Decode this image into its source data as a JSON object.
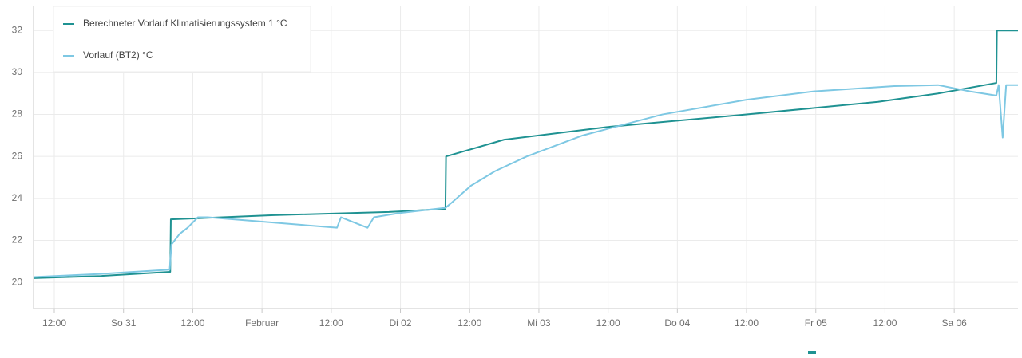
{
  "chart_data": {
    "type": "line",
    "xlim": [
      8.4,
      179.05
    ],
    "ylim": [
      18.75,
      33.15
    ],
    "xticks": [
      {
        "value": 12,
        "label": "12:00"
      },
      {
        "value": 24,
        "label": "So 31"
      },
      {
        "value": 36,
        "label": "12:00"
      },
      {
        "value": 48,
        "label": "Februar"
      },
      {
        "value": 60,
        "label": "12:00"
      },
      {
        "value": 72,
        "label": "Di 02"
      },
      {
        "value": 84,
        "label": "12:00"
      },
      {
        "value": 96,
        "label": "Mi 03"
      },
      {
        "value": 108,
        "label": "12:00"
      },
      {
        "value": 120,
        "label": "Do 04"
      },
      {
        "value": 132,
        "label": "12:00"
      },
      {
        "value": 144,
        "label": "Fr 05"
      },
      {
        "value": 156,
        "label": "12:00"
      },
      {
        "value": 168,
        "label": "Sa 06"
      }
    ],
    "yticks": [
      20,
      22,
      24,
      26,
      28,
      30,
      32
    ],
    "grid": true,
    "legend": "top-left",
    "series": [
      {
        "name": "Berechneter Vorlauf Klimatisierungssystem 1 °C",
        "color": "#1f9292",
        "x": [
          8.4,
          20,
          32.1,
          32.2,
          50,
          70,
          79.8,
          79.9,
          90,
          107.8,
          132,
          154.8,
          165.2,
          175.3,
          175.4,
          179.05
        ],
        "values": [
          20.2,
          20.3,
          20.5,
          23.0,
          23.2,
          23.35,
          23.5,
          26.0,
          26.8,
          27.4,
          28.0,
          28.6,
          29.0,
          29.5,
          32.0,
          32.0
        ]
      },
      {
        "name": "Vorlauf (BT2) °C",
        "color": "#7ec8e3",
        "x": [
          8.4,
          20,
          32.0,
          32.3,
          33.7,
          35.1,
          36.9,
          38.6,
          61.0,
          61.7,
          66.3,
          67.4,
          71.8,
          79.8,
          80.9,
          84.2,
          88.4,
          93.9,
          103.6,
          117.4,
          132,
          143.7,
          157.6,
          165.2,
          170.7,
          175.3,
          175.7,
          176.4,
          177.0,
          179.05
        ],
        "values": [
          20.25,
          20.4,
          20.6,
          21.8,
          22.3,
          22.6,
          23.1,
          23.1,
          22.6,
          23.1,
          22.6,
          23.1,
          23.3,
          23.55,
          23.8,
          24.6,
          25.3,
          26.0,
          27.0,
          28.0,
          28.7,
          29.1,
          29.35,
          29.4,
          29.1,
          28.9,
          29.4,
          26.9,
          29.4,
          29.4
        ]
      }
    ]
  }
}
